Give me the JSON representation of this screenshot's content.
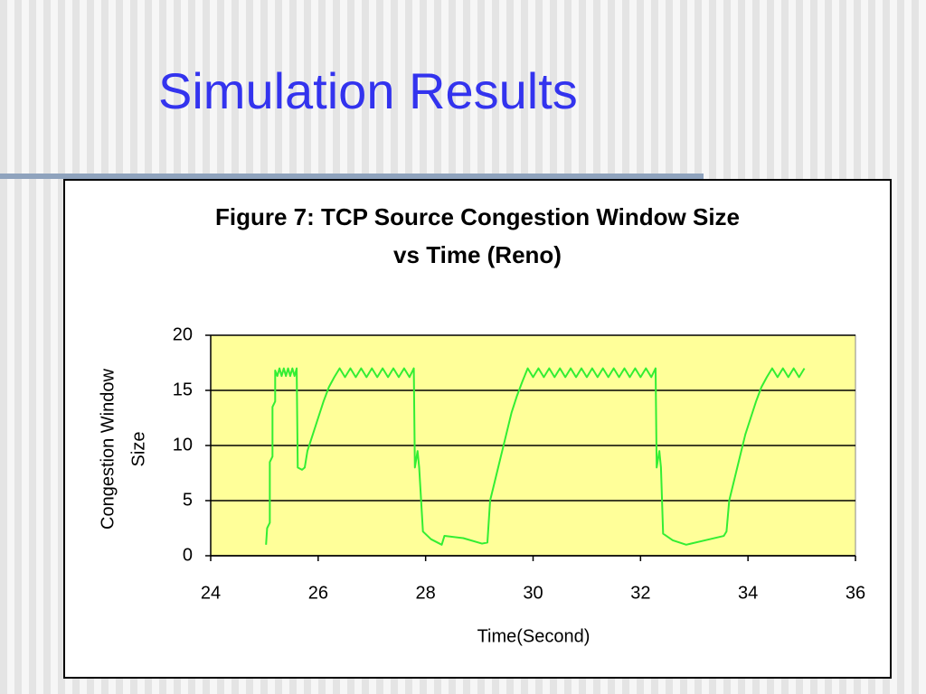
{
  "slide_title": "Simulation Results",
  "chart_data": {
    "type": "line",
    "title": [
      "Figure 7: TCP Source Congestion Window Size",
      "vs Time (Reno)"
    ],
    "xlabel": "Time(Second)",
    "ylabel": [
      "Congestion Window",
      "Size"
    ],
    "xlim": [
      24,
      36
    ],
    "xticks": [
      24,
      26,
      28,
      30,
      32,
      34,
      36
    ],
    "ylim": [
      0,
      20
    ],
    "yticks": [
      0,
      5,
      10,
      15,
      20
    ],
    "grid": true,
    "plot_background": "#ffff99",
    "color": "#33ee33",
    "x": [
      25.03,
      25.05,
      25.1,
      25.1,
      25.15,
      25.15,
      25.2,
      25.2,
      25.24,
      25.28,
      25.32,
      25.36,
      25.4,
      25.44,
      25.48,
      25.52,
      25.56,
      25.6,
      25.62,
      25.7,
      25.75,
      25.8,
      25.9,
      26.0,
      26.1,
      26.2,
      26.3,
      26.4,
      26.5,
      26.6,
      26.7,
      26.8,
      26.9,
      27.0,
      27.1,
      27.2,
      27.3,
      27.4,
      27.5,
      27.6,
      27.7,
      27.78,
      27.8,
      27.85,
      27.88,
      27.95,
      28.1,
      28.3,
      28.35,
      28.7,
      29.05,
      29.15,
      29.2,
      29.3,
      29.4,
      29.5,
      29.6,
      29.7,
      29.8,
      29.9,
      30.0,
      30.1,
      30.2,
      30.3,
      30.4,
      30.5,
      30.6,
      30.7,
      30.8,
      30.9,
      31.0,
      31.1,
      31.2,
      31.3,
      31.4,
      31.5,
      31.6,
      31.7,
      31.8,
      31.9,
      32.0,
      32.1,
      32.2,
      32.28,
      32.3,
      32.35,
      32.38,
      32.42,
      32.6,
      32.85,
      33.2,
      33.55,
      33.6,
      33.65,
      33.75,
      33.85,
      33.95,
      34.05,
      34.15,
      34.25,
      34.35,
      34.45,
      34.55,
      34.65,
      34.75,
      34.85,
      34.95,
      35.05
    ],
    "values": [
      1,
      2.5,
      3,
      8.5,
      9,
      13.5,
      14,
      16.8,
      16.3,
      17,
      16.3,
      17,
      16.3,
      17,
      16.3,
      17,
      16.3,
      17,
      8,
      7.8,
      8,
      9.5,
      11,
      12.5,
      14,
      15.3,
      16.2,
      17,
      16.2,
      17,
      16.2,
      17,
      16.2,
      17,
      16.2,
      17,
      16.2,
      17,
      16.2,
      17,
      16.2,
      17,
      8,
      9.5,
      8,
      2.2,
      1.5,
      1,
      1.8,
      1.6,
      1.1,
      1.2,
      5,
      7,
      9,
      11,
      13,
      14.5,
      15.8,
      17,
      16.2,
      17,
      16.2,
      17,
      16.2,
      17,
      16.2,
      17,
      16.2,
      17,
      16.2,
      17,
      16.2,
      17,
      16.2,
      17,
      16.2,
      17,
      16.2,
      17,
      16.2,
      17,
      16.2,
      17,
      8,
      9.5,
      8,
      2,
      1.4,
      1,
      1.4,
      1.8,
      2.2,
      5,
      7,
      9,
      11,
      12.5,
      14,
      15.3,
      16.2,
      17,
      16.2,
      17,
      16.2,
      17,
      16.2,
      17
    ]
  }
}
